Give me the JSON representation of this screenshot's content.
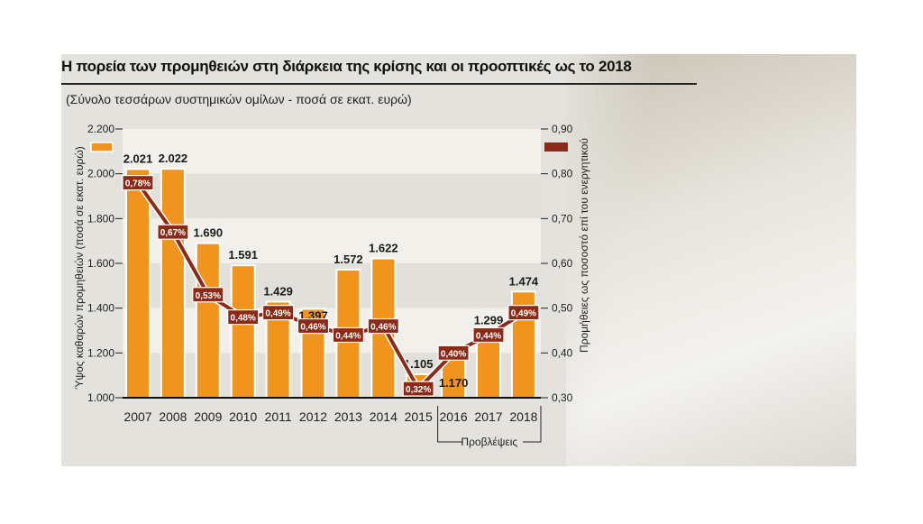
{
  "chart_data": {
    "type": "bar+line",
    "title": "Η πορεία των προμηθειών στη διάρκεια της κρίσης και οι προοπτικές ως το 2018",
    "subtitle": "(Σύνολο τεσσάρων συστημικών ομίλων - ποσά σε εκατ. ευρώ)",
    "categories": [
      "2007",
      "2008",
      "2009",
      "2010",
      "2011",
      "2012",
      "2013",
      "2014",
      "2015",
      "2016",
      "2017",
      "2018"
    ],
    "ylabel_left": "Ύψος καθαρών προμηθειών (ποσά σε εκατ. ευρώ)",
    "ylabel_right": "Προμήθειες ως ποσοστό επί του ενεργητικού",
    "ylim_left": [
      1000,
      2200
    ],
    "ylim_right": [
      0.3,
      0.9
    ],
    "yticks_left": [
      "1.000",
      "1.200",
      "1.400",
      "1.600",
      "1.800",
      "2.000",
      "2.200"
    ],
    "yticks_right": [
      "0,30",
      "0,40",
      "0,50",
      "0,60",
      "0,70",
      "0,80",
      "0,90"
    ],
    "series": [
      {
        "type": "bar",
        "axis": "left",
        "color": "#f0941e",
        "values": [
          2021,
          2022,
          1690,
          1591,
          1429,
          1397,
          1572,
          1622,
          1105,
          1170,
          1299,
          1474
        ],
        "labels": [
          "2.021",
          "2.022",
          "1.690",
          "1.591",
          "1.429",
          "1.397",
          "1.572",
          "1.622",
          "1.105",
          "1.170",
          "1.299",
          "1.474"
        ]
      },
      {
        "type": "line",
        "axis": "right",
        "color": "#8b2a18",
        "values": [
          0.78,
          0.67,
          0.53,
          0.48,
          0.49,
          0.46,
          0.44,
          0.46,
          0.32,
          0.4,
          0.44,
          0.49
        ],
        "labels": [
          "0,78%",
          "0,67%",
          "0,53%",
          "0,48%",
          "0,49%",
          "0,46%",
          "0,44%",
          "0,46%",
          "0,32%",
          "0,40%",
          "0,44%",
          "0,49%"
        ]
      }
    ],
    "bracket_label": "Προβλέψεις",
    "bracket_range": [
      "2016",
      "2018"
    ],
    "grid": "alternating bands",
    "legend": "color swatches top-left (bars) and top-right (line)"
  }
}
